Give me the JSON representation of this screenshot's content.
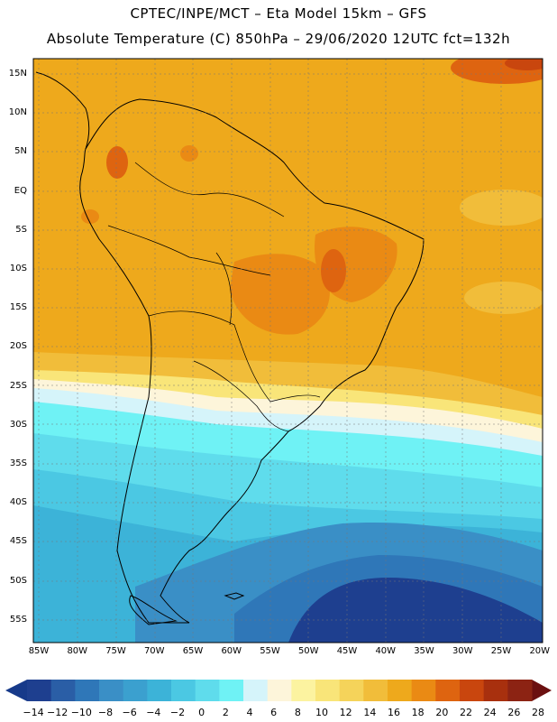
{
  "header": {
    "line1": "CPTEC/INPE/MCT –  Eta Model 15km – GFS",
    "line2": "Absolute Temperature (C) 850hPa – 29/06/2020 12UTC fct=132h"
  },
  "map": {
    "lat_labels": [
      "15N",
      "10N",
      "5N",
      "EQ",
      "5S",
      "10S",
      "15S",
      "20S",
      "25S",
      "30S",
      "35S",
      "40S",
      "45S",
      "50S",
      "55S"
    ],
    "lon_labels": [
      "85W",
      "80W",
      "75W",
      "70W",
      "65W",
      "60W",
      "55W",
      "50W",
      "45W",
      "40W",
      "35W",
      "30W",
      "25W",
      "20W"
    ]
  },
  "colorbar": {
    "labels": [
      "-14",
      "-12",
      "-10",
      "-8",
      "-6",
      "-4",
      "-2",
      "0",
      "2",
      "4",
      "6",
      "8",
      "10",
      "12",
      "14",
      "16",
      "18",
      "20",
      "22",
      "24",
      "26",
      "28"
    ],
    "colors": [
      "#1e3f8f",
      "#2a5ea6",
      "#2f77b8",
      "#3a8fc6",
      "#3ba0cf",
      "#3cb3d8",
      "#4bc8e3",
      "#5fdcec",
      "#6ff2f5",
      "#d5f4fa",
      "#fdf5da",
      "#fcf3a0",
      "#f9e579",
      "#f5d35a",
      "#f1bd3a",
      "#eea91c",
      "#ea8a14",
      "#de6410",
      "#c9460e",
      "#a8300e",
      "#8c2313"
    ],
    "arrow_left": "#173a8a",
    "arrow_right": "#6b1010"
  },
  "style": {
    "ocean_warm": "#eea91c",
    "land_hot": "#ea8a14",
    "deep_cold": "#1e3f8f"
  }
}
